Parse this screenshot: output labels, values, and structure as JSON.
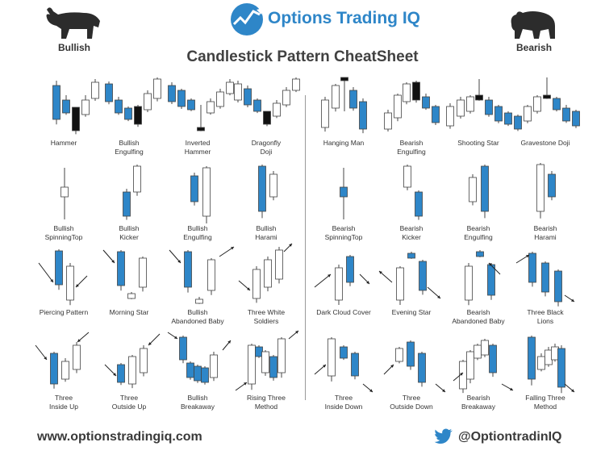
{
  "header": {
    "brand": "Options Trading IQ",
    "title": "Candlestick Pattern CheatSheet",
    "bullish": "Bullish",
    "bearish": "Bearish"
  },
  "colors": {
    "blue": "#2e86c8",
    "black": "#111111",
    "white": "#ffffff",
    "outline": "#444444"
  },
  "patterns": [
    {
      "label": "Hammer",
      "c": [
        [
          "b",
          70,
          100,
          106,
          148
        ],
        [
          "b",
          82,
          118,
          124,
          140
        ],
        [
          "k",
          94,
          133,
          133,
          162
        ],
        [
          "w",
          106,
          118,
          124,
          142
        ],
        [
          "w",
          118,
          98,
          102,
          122
        ]
      ]
    },
    {
      "label": "Bullish\nEngulfing",
      "c": [
        [
          "b",
          135,
          101,
          104,
          126
        ],
        [
          "b",
          147,
          120,
          124,
          140
        ],
        [
          "b",
          159,
          132,
          134,
          148
        ],
        [
          "k",
          171,
          130,
          132,
          154
        ],
        [
          "w",
          183,
          112,
          116,
          136
        ],
        [
          "w",
          195,
          96,
          98,
          122
        ]
      ]
    },
    {
      "label": "Inverted\nHammer",
      "c": [
        [
          "b",
          213,
          102,
          106,
          126
        ],
        [
          "b",
          225,
          110,
          112,
          132
        ],
        [
          "b",
          237,
          122,
          124,
          136
        ],
        [
          "k",
          249,
          130,
          158,
          162
        ],
        [
          "w",
          261,
          122,
          126,
          140
        ],
        [
          "w",
          273,
          110,
          114,
          132
        ],
        [
          "w",
          285,
          98,
          102,
          116
        ]
      ]
    },
    {
      "label": "Dragonfly\nDoji",
      "c": [
        [
          "w",
          295,
          100,
          104,
          124
        ],
        [
          "b",
          307,
          106,
          110,
          130
        ],
        [
          "b",
          319,
          122,
          124,
          138
        ],
        [
          "k",
          331,
          138,
          138,
          154
        ],
        [
          "w",
          343,
          124,
          128,
          144
        ],
        [
          "w",
          355,
          108,
          112,
          130
        ],
        [
          "w",
          367,
          96,
          98,
          112
        ]
      ]
    },
    {
      "label": "Bullish\nSpinningTop",
      "c": [
        [
          "w",
          80,
          208,
          232,
          244,
          272
        ]
      ]
    },
    {
      "label": "Bullish\nKicker",
      "c": [
        [
          "b",
          157,
          234,
          238,
          268
        ],
        [
          "w",
          170,
          204,
          206,
          238
        ]
      ]
    },
    {
      "label": "Bullish\nEngulfing",
      "c": [
        [
          "b",
          241,
          214,
          218,
          250
        ],
        [
          "w",
          256,
          206,
          208,
          268
        ]
      ]
    },
    {
      "label": "Bullish\nHarami",
      "c": [
        [
          "b",
          325,
          204,
          206,
          262
        ],
        [
          "w",
          339,
          212,
          216,
          244
        ]
      ]
    },
    {
      "label": "Piercing Pattern",
      "c": [
        [
          "b",
          73,
          309,
          311,
          353
        ],
        [
          "w",
          87,
          326,
          330,
          372
        ]
      ]
    },
    {
      "label": "Morning Star",
      "c": [
        [
          "b",
          150,
          310,
          312,
          354
        ],
        [
          "w",
          163,
          362,
          364,
          370
        ],
        [
          "w",
          177,
          318,
          320,
          356
        ]
      ]
    },
    {
      "label": "Bullish\nAbandoned Baby",
      "c": [
        [
          "b",
          233,
          310,
          312,
          356
        ],
        [
          "w",
          247,
          368,
          371,
          376
        ],
        [
          "w",
          262,
          320,
          322,
          360
        ]
      ]
    },
    {
      "label": "Three White\nSoldiers",
      "c": [
        [
          "w",
          318,
          330,
          334,
          370
        ],
        [
          "w",
          332,
          318,
          322,
          356
        ],
        [
          "w",
          346,
          306,
          310,
          346
        ]
      ]
    },
    {
      "label": "Three\nInside Up",
      "c": [
        [
          "b",
          67,
          436,
          438,
          476
        ],
        [
          "w",
          81,
          444,
          448,
          470
        ],
        [
          "w",
          95,
          424,
          428,
          458
        ]
      ]
    },
    {
      "label": "Three\nOutside Up",
      "c": [
        [
          "b",
          150,
          450,
          452,
          474
        ],
        [
          "w",
          164,
          440,
          442,
          476
        ],
        [
          "w",
          178,
          428,
          432,
          462
        ]
      ]
    },
    {
      "label": "Bullish\nBreakaway",
      "c": [
        [
          "b",
          227,
          416,
          418,
          446
        ],
        [
          "b",
          236,
          448,
          450,
          468
        ],
        [
          "b",
          245,
          452,
          454,
          472
        ],
        [
          "b",
          254,
          454,
          456,
          474
        ],
        [
          "w",
          265,
          436,
          440,
          468
        ]
      ]
    },
    {
      "label": "Rising Three\nMethod",
      "c": [
        [
          "w",
          312,
          426,
          428,
          476
        ],
        [
          "b",
          321,
          428,
          430,
          442
        ],
        [
          "w",
          329,
          434,
          436,
          462
        ],
        [
          "b",
          339,
          440,
          442,
          468
        ],
        [
          "w",
          349,
          418,
          420,
          462
        ]
      ]
    },
    {
      "label": "Hanging Man",
      "c": [
        [
          "w",
          403,
          120,
          124,
          158
        ],
        [
          "w",
          416,
          104,
          106,
          134
        ],
        [
          "k",
          427,
          96,
          96,
          100,
          138
        ],
        [
          "b",
          438,
          108,
          112,
          134
        ],
        [
          "b",
          450,
          122,
          126,
          160
        ]
      ]
    },
    {
      "label": "Bearish\nEngulfing",
      "c": [
        [
          "w",
          481,
          136,
          140,
          160
        ],
        [
          "w",
          493,
          116,
          118,
          146
        ],
        [
          "w",
          504,
          102,
          104,
          126
        ],
        [
          "k",
          516,
          100,
          102,
          124
        ],
        [
          "b",
          528,
          116,
          120,
          134
        ],
        [
          "b",
          540,
          130,
          132,
          152
        ]
      ]
    },
    {
      "label": "Shooting Star",
      "c": [
        [
          "w",
          558,
          128,
          132,
          156
        ],
        [
          "w",
          571,
          120,
          124,
          144
        ],
        [
          "w",
          583,
          118,
          120,
          138
        ],
        [
          "k",
          594,
          98,
          118,
          124
        ],
        [
          "b",
          606,
          120,
          124,
          142
        ],
        [
          "b",
          618,
          130,
          132,
          150
        ],
        [
          "b",
          630,
          138,
          140,
          154
        ]
      ]
    },
    {
      "label": "Gravestone Doji",
      "c": [
        [
          "b",
          642,
          142,
          144,
          160
        ],
        [
          "w",
          654,
          130,
          132,
          150
        ],
        [
          "w",
          666,
          118,
          120,
          138
        ],
        [
          "k",
          678,
          96,
          118,
          122
        ],
        [
          "b",
          690,
          120,
          122,
          136
        ],
        [
          "b",
          702,
          130,
          134,
          150
        ],
        [
          "b",
          714,
          136,
          138,
          156
        ]
      ]
    },
    {
      "label": "Bearish\nSpinningTop",
      "c": [
        [
          "b",
          426,
          208,
          232,
          244,
          272
        ]
      ]
    },
    {
      "label": "Bearish\nKicker",
      "c": [
        [
          "w",
          505,
          204,
          206,
          232
        ],
        [
          "b",
          519,
          236,
          238,
          268
        ]
      ]
    },
    {
      "label": "Bearish\nEngulfing",
      "c": [
        [
          "w",
          586,
          216,
          220,
          250
        ],
        [
          "b",
          601,
          204,
          206,
          262
        ]
      ]
    },
    {
      "label": "Bearish\nHarami",
      "c": [
        [
          "w",
          670,
          202,
          204,
          262
        ],
        [
          "b",
          684,
          212,
          216,
          244
        ]
      ]
    },
    {
      "label": "Dark Cloud Cover",
      "c": [
        [
          "w",
          420,
          328,
          332,
          372
        ],
        [
          "b",
          434,
          316,
          318,
          350
        ]
      ]
    },
    {
      "label": "Evening Star",
      "c": [
        [
          "w",
          496,
          330,
          332,
          372
        ],
        [
          "b",
          510,
          312,
          314,
          320
        ],
        [
          "b",
          524,
          322,
          324,
          360
        ]
      ]
    },
    {
      "label": "Bearish\nAbandoned Baby",
      "c": [
        [
          "w",
          581,
          326,
          330,
          372
        ],
        [
          "b",
          595,
          310,
          312,
          318
        ],
        [
          "b",
          609,
          326,
          328,
          366
        ]
      ]
    },
    {
      "label": "Three Black\nLions",
      "c": [
        [
          "b",
          660,
          312,
          314,
          350
        ],
        [
          "b",
          676,
          324,
          326,
          362
        ],
        [
          "b",
          692,
          334,
          336,
          374
        ]
      ]
    },
    {
      "label": "Three\nInside Down",
      "c": [
        [
          "w",
          411,
          418,
          420,
          466
        ],
        [
          "b",
          426,
          428,
          430,
          444
        ],
        [
          "b",
          440,
          436,
          438,
          466
        ]
      ]
    },
    {
      "label": "Three\nOutside Down",
      "c": [
        [
          "w",
          495,
          430,
          432,
          448
        ],
        [
          "b",
          509,
          422,
          424,
          454
        ],
        [
          "b",
          523,
          436,
          438,
          474
        ]
      ]
    },
    {
      "label": "Bearish\nBreakaway",
      "c": [
        [
          "w",
          574,
          446,
          448,
          482
        ],
        [
          "w",
          583,
          434,
          436,
          470
        ],
        [
          "w",
          592,
          426,
          428,
          444
        ],
        [
          "w",
          601,
          420,
          422,
          440
        ],
        [
          "b",
          611,
          426,
          428,
          462
        ]
      ]
    },
    {
      "label": "Falling Three\nMethod",
      "c": [
        [
          "b",
          659,
          416,
          418,
          470
        ],
        [
          "w",
          671,
          438,
          442,
          458
        ],
        [
          "w",
          680,
          430,
          434,
          452
        ],
        [
          "w",
          688,
          426,
          430,
          446
        ],
        [
          "b",
          696,
          428,
          432,
          480
        ]
      ]
    }
  ],
  "footer": {
    "website": "www.optionstradingiq.com",
    "twitter": "@OptiontradinIQ"
  }
}
